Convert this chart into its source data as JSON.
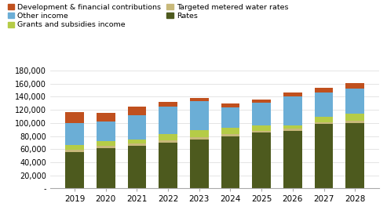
{
  "years": [
    2019,
    2020,
    2021,
    2022,
    2023,
    2024,
    2025,
    2026,
    2027,
    2028
  ],
  "series": {
    "Rates": [
      55000,
      61000,
      65000,
      70000,
      75000,
      80000,
      85000,
      88000,
      98000,
      100000
    ],
    "Targeted metered water rates": [
      4000,
      3500,
      3500,
      3500,
      3500,
      3000,
      3000,
      3000,
      3000,
      3000
    ],
    "Grants and subsidies income": [
      7000,
      7500,
      6000,
      10000,
      10000,
      9000,
      8000,
      5000,
      8000,
      11000
    ],
    "Other income": [
      34000,
      30000,
      37000,
      42000,
      45000,
      32000,
      35000,
      45000,
      38000,
      38000
    ],
    "Development & financial contributions": [
      17000,
      13000,
      13000,
      7000,
      4500,
      6000,
      5000,
      5000,
      7000,
      9000
    ]
  },
  "colors": {
    "Rates": "#4d5a1e",
    "Targeted metered water rates": "#c8b97a",
    "Grants and subsidies income": "#b5cc47",
    "Other income": "#6baed6",
    "Development & financial contributions": "#c0501e"
  },
  "ylim": [
    0,
    180000
  ],
  "yticks": [
    0,
    20000,
    40000,
    60000,
    80000,
    100000,
    120000,
    140000,
    160000,
    180000
  ],
  "ytick_labels": [
    "-",
    "20,000",
    "40,000",
    "60,000",
    "80,000",
    "100,000",
    "120,000",
    "140,000",
    "160,000",
    "180,000"
  ],
  "legend_order": [
    "Development & financial contributions",
    "Other income",
    "Grants and subsidies income",
    "Targeted metered water rates",
    "Rates"
  ],
  "background_color": "#ffffff",
  "grid_color": "#d9d9d9"
}
